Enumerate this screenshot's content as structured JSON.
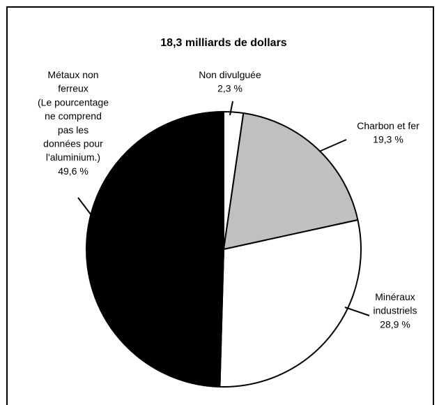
{
  "chart_data": {
    "type": "pie",
    "title": "18,3 milliards de dollars",
    "categories": [
      [
        "Non divulguée"
      ],
      [
        "Charbon et fer"
      ],
      [
        "Minéraux",
        "industriels"
      ],
      [
        "Métaux non",
        "ferreux",
        "(Le pourcentage",
        "ne comprend",
        "pas les",
        "données pour",
        "l'aluminium.)"
      ]
    ],
    "values": [
      2.3,
      19.3,
      28.9,
      49.6
    ],
    "value_labels": [
      "2,3 %",
      "19,3 %",
      "28,9 %",
      "49,6 %"
    ],
    "colors": [
      "#ffffff",
      "#c0c0c0",
      "#ffffff",
      "#000000"
    ]
  }
}
